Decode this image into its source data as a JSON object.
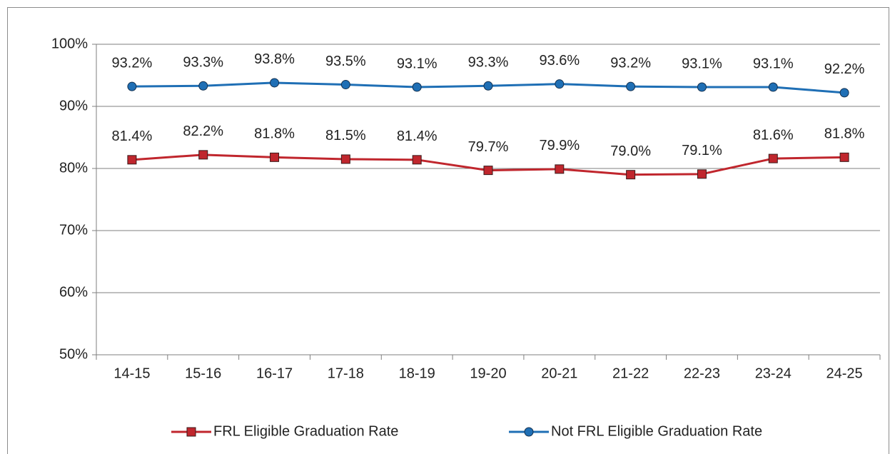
{
  "chart_data": {
    "type": "line",
    "categories": [
      "14-15",
      "15-16",
      "16-17",
      "17-18",
      "18-19",
      "19-20",
      "20-21",
      "21-22",
      "22-23",
      "23-24",
      "24-25"
    ],
    "series": [
      {
        "name": "FRL Eligible Graduation Rate",
        "color": "#c0262d",
        "marker": "square",
        "values": [
          81.4,
          82.2,
          81.8,
          81.5,
          81.4,
          79.7,
          79.9,
          79.0,
          79.1,
          81.6,
          81.8
        ],
        "value_labels": [
          "81.4%",
          "82.2%",
          "81.8%",
          "81.5%",
          "81.4%",
          "79.7%",
          "79.9%",
          "79.0%",
          "79.1%",
          "81.6%",
          "81.8%"
        ]
      },
      {
        "name": "Not FRL Eligible Graduation Rate",
        "color": "#1f6fb5",
        "marker": "circle",
        "values": [
          93.2,
          93.3,
          93.8,
          93.5,
          93.1,
          93.3,
          93.6,
          93.2,
          93.1,
          93.1,
          92.2
        ],
        "value_labels": [
          "93.2%",
          "93.3%",
          "93.8%",
          "93.5%",
          "93.1%",
          "93.3%",
          "93.6%",
          "93.2%",
          "93.1%",
          "93.1%",
          "92.2%"
        ]
      }
    ],
    "ylim": [
      50,
      100
    ],
    "yticks": [
      {
        "value": 50,
        "label": "50%"
      },
      {
        "value": 60,
        "label": "60%"
      },
      {
        "value": 70,
        "label": "70%"
      },
      {
        "value": 80,
        "label": "80%"
      },
      {
        "value": 90,
        "label": "90%"
      },
      {
        "value": 100,
        "label": "100%"
      }
    ],
    "grid": true,
    "legend": "bottom"
  }
}
